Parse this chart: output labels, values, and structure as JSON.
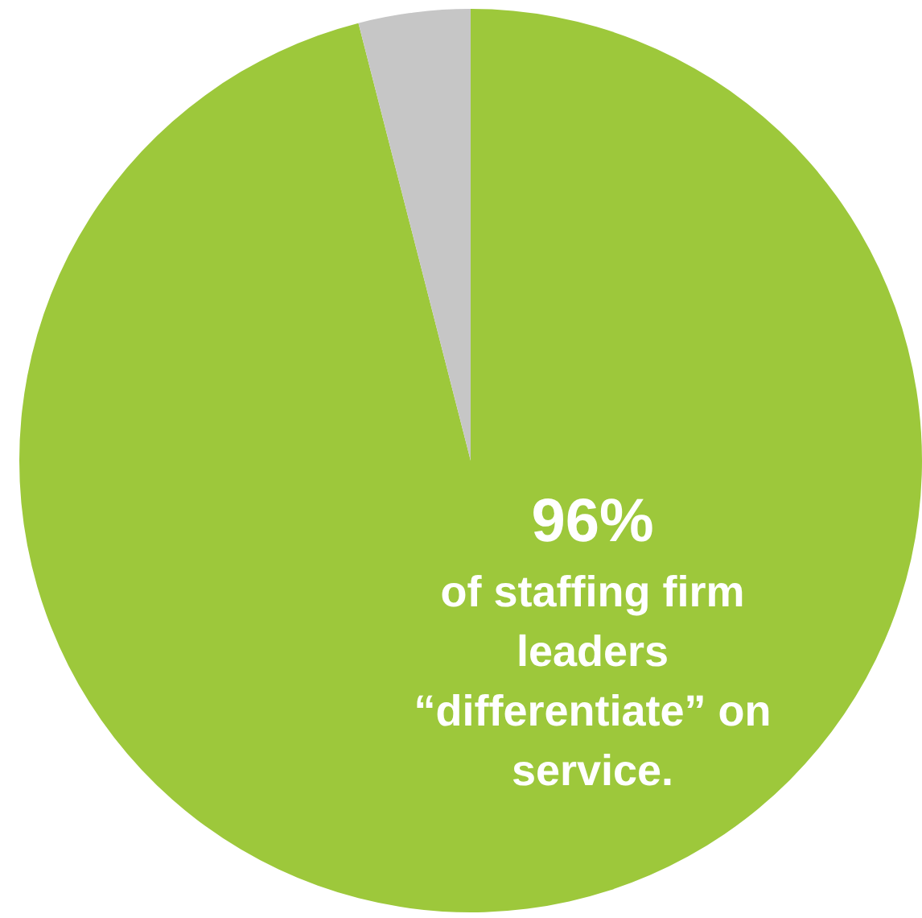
{
  "chart_data": {
    "type": "pie",
    "categories": [
      null,
      null
    ],
    "values": [
      96,
      4
    ],
    "colors": [
      "#9dc83b",
      "#c6c6c6"
    ],
    "value_labels": [
      "96%",
      null
    ],
    "legend": false,
    "annotations": [
      "of staffing firm leaders “differentiate” on service."
    ]
  }
}
